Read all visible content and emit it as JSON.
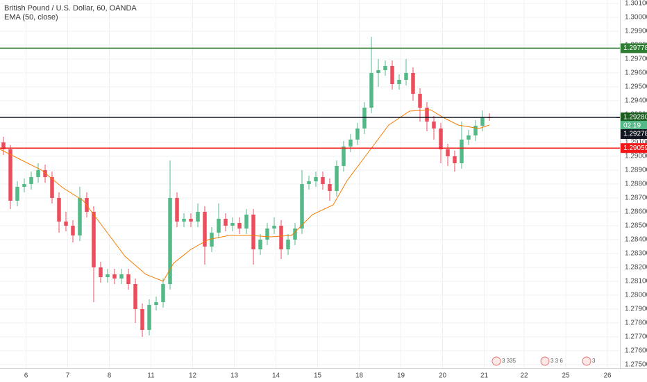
{
  "chart_data": {
    "type": "candlestick",
    "title": "British Pound / U.S. Dollar, 60, OANDA",
    "up_color": "#53b987",
    "down_color": "#eb4d5c",
    "grid": true,
    "xlim": [
      0,
      357.2
    ],
    "ylim": [
      1.27475,
      1.30125
    ],
    "xticks": [
      {
        "value": 15,
        "label": "6"
      },
      {
        "value": 39,
        "label": "7"
      },
      {
        "value": 63,
        "label": "8"
      },
      {
        "value": 87,
        "label": "11"
      },
      {
        "value": 111,
        "label": "12"
      },
      {
        "value": 135,
        "label": "13"
      },
      {
        "value": 159,
        "label": "14"
      },
      {
        "value": 183,
        "label": "15"
      },
      {
        "value": 207,
        "label": "18"
      },
      {
        "value": 231,
        "label": "19"
      },
      {
        "value": 255,
        "label": "20"
      },
      {
        "value": 279,
        "label": "21"
      },
      {
        "value": 302,
        "label": "22"
      },
      {
        "value": 326,
        "label": "25"
      },
      {
        "value": 350,
        "label": "26"
      }
    ],
    "yticks": [
      {
        "value": 1.301,
        "label": "1.30100"
      },
      {
        "value": 1.3,
        "label": "1.30000"
      },
      {
        "value": 1.299,
        "label": "1.29900"
      },
      {
        "value": 1.298,
        "label": "1.29800"
      },
      {
        "value": 1.297,
        "label": "1.29700"
      },
      {
        "value": 1.296,
        "label": "1.29600"
      },
      {
        "value": 1.295,
        "label": "1.29500"
      },
      {
        "value": 1.294,
        "label": "1.29400"
      },
      {
        "value": 1.293,
        "label": "1.29300"
      },
      {
        "value": 1.292,
        "label": "1.29200"
      },
      {
        "value": 1.291,
        "label": "1.29100"
      },
      {
        "value": 1.29,
        "label": "1.29000"
      },
      {
        "value": 1.289,
        "label": "1.28900"
      },
      {
        "value": 1.288,
        "label": "1.28800"
      },
      {
        "value": 1.287,
        "label": "1.28700"
      },
      {
        "value": 1.286,
        "label": "1.28600"
      },
      {
        "value": 1.285,
        "label": "1.28500"
      },
      {
        "value": 1.284,
        "label": "1.28400"
      },
      {
        "value": 1.283,
        "label": "1.28300"
      },
      {
        "value": 1.282,
        "label": "1.28200"
      },
      {
        "value": 1.281,
        "label": "1.28100"
      },
      {
        "value": 1.28,
        "label": "1.28000"
      },
      {
        "value": 1.279,
        "label": "1.27900"
      },
      {
        "value": 1.278,
        "label": "1.27800"
      },
      {
        "value": 1.277,
        "label": "1.27700"
      },
      {
        "value": 1.276,
        "label": "1.27600"
      },
      {
        "value": 1.275,
        "label": "1.27500"
      }
    ],
    "x": [
      2,
      6,
      10,
      14,
      18,
      22,
      26,
      30,
      34,
      38,
      42,
      46,
      50,
      54,
      58,
      62,
      66,
      70,
      74,
      78,
      82,
      86,
      90,
      94,
      98,
      102,
      106,
      110,
      114,
      118,
      122,
      126,
      130,
      134,
      138,
      142,
      146,
      150,
      154,
      158,
      162,
      166,
      170,
      174,
      178,
      182,
      186,
      190,
      194,
      198,
      202,
      206,
      210,
      214,
      218,
      222,
      226,
      230,
      234,
      238,
      242,
      246,
      250,
      254,
      258,
      262,
      266,
      270,
      274,
      278,
      282
    ],
    "ohlc": [
      [
        1.291,
        1.2914,
        1.2901,
        1.2905
      ],
      [
        1.2905,
        1.2908,
        1.2862,
        1.2868
      ],
      [
        1.2868,
        1.2882,
        1.2864,
        1.2878
      ],
      [
        1.2878,
        1.2884,
        1.2874,
        1.288
      ],
      [
        1.288,
        1.2889,
        1.2876,
        1.2885
      ],
      [
        1.2885,
        1.2895,
        1.2881,
        1.289
      ],
      [
        1.289,
        1.2894,
        1.2881,
        1.2885
      ],
      [
        1.2885,
        1.2889,
        1.2866,
        1.287
      ],
      [
        1.287,
        1.2874,
        1.2845,
        1.2853
      ],
      [
        1.2853,
        1.286,
        1.2846,
        1.285
      ],
      [
        1.285,
        1.2854,
        1.2838,
        1.2843
      ],
      [
        1.2843,
        1.2878,
        1.2839,
        1.287
      ],
      [
        1.287,
        1.2874,
        1.2856,
        1.286
      ],
      [
        1.286,
        1.2864,
        1.2795,
        1.282
      ],
      [
        1.282,
        1.2824,
        1.2809,
        1.2813
      ],
      [
        1.2813,
        1.2819,
        1.2809,
        1.2815
      ],
      [
        1.2815,
        1.2819,
        1.2808,
        1.2812
      ],
      [
        1.2812,
        1.2819,
        1.2808,
        1.2815
      ],
      [
        1.2815,
        1.2819,
        1.2804,
        1.2808
      ],
      [
        1.2808,
        1.2812,
        1.278,
        1.279
      ],
      [
        1.279,
        1.2794,
        1.277,
        1.2775
      ],
      [
        1.2775,
        1.2797,
        1.2771,
        1.2793
      ],
      [
        1.2793,
        1.2799,
        1.2789,
        1.2795
      ],
      [
        1.2795,
        1.2812,
        1.2791,
        1.2808
      ],
      [
        1.2808,
        1.2897,
        1.2804,
        1.287
      ],
      [
        1.287,
        1.2874,
        1.2849,
        1.2853
      ],
      [
        1.2853,
        1.2859,
        1.2849,
        1.2855
      ],
      [
        1.2855,
        1.2859,
        1.2849,
        1.2853
      ],
      [
        1.2853,
        1.2866,
        1.2849,
        1.286
      ],
      [
        1.286,
        1.2864,
        1.2822,
        1.2835
      ],
      [
        1.2835,
        1.2849,
        1.2831,
        1.2845
      ],
      [
        1.2845,
        1.2866,
        1.2841,
        1.2855
      ],
      [
        1.2855,
        1.2859,
        1.2846,
        1.285
      ],
      [
        1.285,
        1.2856,
        1.2846,
        1.2852
      ],
      [
        1.2852,
        1.2856,
        1.2844,
        1.2848
      ],
      [
        1.2848,
        1.2862,
        1.2844,
        1.2858
      ],
      [
        1.2858,
        1.2862,
        1.2822,
        1.2833
      ],
      [
        1.2833,
        1.2844,
        1.2829,
        1.284
      ],
      [
        1.284,
        1.2852,
        1.2836,
        1.2848
      ],
      [
        1.2848,
        1.2856,
        1.2844,
        1.285
      ],
      [
        1.285,
        1.2854,
        1.2826,
        1.2833
      ],
      [
        1.2833,
        1.2844,
        1.2829,
        1.284
      ],
      [
        1.284,
        1.2852,
        1.2836,
        1.2848
      ],
      [
        1.2848,
        1.289,
        1.2844,
        1.288
      ],
      [
        1.288,
        1.2886,
        1.2876,
        1.2882
      ],
      [
        1.2882,
        1.2889,
        1.2878,
        1.2885
      ],
      [
        1.2885,
        1.2889,
        1.2876,
        1.288
      ],
      [
        1.288,
        1.2884,
        1.2868,
        1.2875
      ],
      [
        1.2875,
        1.2897,
        1.2871,
        1.2893
      ],
      [
        1.2893,
        1.2911,
        1.2889,
        1.2907
      ],
      [
        1.2907,
        1.2916,
        1.2903,
        1.2912
      ],
      [
        1.2912,
        1.2924,
        1.2908,
        1.292
      ],
      [
        1.292,
        1.2939,
        1.2916,
        1.2935
      ],
      [
        1.2935,
        1.2986,
        1.2931,
        1.296
      ],
      [
        1.296,
        1.297,
        1.295,
        1.2962
      ],
      [
        1.2962,
        1.2969,
        1.2958,
        1.2965
      ],
      [
        1.2965,
        1.2969,
        1.2948,
        1.2952
      ],
      [
        1.2952,
        1.2959,
        1.2948,
        1.2955
      ],
      [
        1.2955,
        1.297,
        1.2951,
        1.296
      ],
      [
        1.296,
        1.2964,
        1.294,
        1.2945
      ],
      [
        1.2945,
        1.2949,
        1.2925,
        1.2935
      ],
      [
        1.2935,
        1.2939,
        1.2918,
        1.2925
      ],
      [
        1.2925,
        1.2929,
        1.2912,
        1.292
      ],
      [
        1.292,
        1.2924,
        1.2895,
        1.2905
      ],
      [
        1.2905,
        1.2909,
        1.2893,
        1.29
      ],
      [
        1.29,
        1.2904,
        1.2889,
        1.2895
      ],
      [
        1.2895,
        1.2925,
        1.2891,
        1.2912
      ],
      [
        1.2912,
        1.2919,
        1.2908,
        1.2915
      ],
      [
        1.2915,
        1.2926,
        1.2911,
        1.2922
      ],
      [
        1.2922,
        1.2933,
        1.2918,
        1.2928
      ],
      [
        1.2928,
        1.2931,
        1.29255,
        1.29278
      ]
    ],
    "ema": {
      "name": "EMA (50, close)",
      "color": "#f57c00",
      "x": [
        0,
        12,
        24,
        36,
        48,
        60,
        72,
        84,
        94,
        100,
        110,
        120,
        132,
        144,
        156,
        168,
        180,
        192,
        200,
        212,
        224,
        236,
        248,
        256,
        264,
        276,
        282
      ],
      "values": [
        1.2905,
        1.28975,
        1.289,
        1.28775,
        1.2868,
        1.2848,
        1.2828,
        1.2815,
        1.281,
        1.2823,
        1.2833,
        1.284,
        1.2843,
        1.2843,
        1.2842,
        1.2843,
        1.2858,
        1.2865,
        1.28825,
        1.29025,
        1.29225,
        1.29325,
        1.29335,
        1.29275,
        1.29225,
        1.292,
        1.29225
      ]
    },
    "hlines": [
      {
        "value": 1.29778,
        "label": "1.29778",
        "color": "#2e7d32"
      },
      {
        "value": 1.2928,
        "label": "1.29280",
        "color": "#1b5e20"
      },
      {
        "value": 1.29059,
        "label": "1.29059",
        "color": "#f21818"
      }
    ],
    "countdown": "02:19",
    "last_price": {
      "value": 1.29278,
      "label": "1.29278",
      "color": "#131722"
    },
    "events": [
      {
        "x": 286,
        "label": "3 335"
      },
      {
        "x": 314,
        "label": "3 3 6"
      },
      {
        "x": 338,
        "label": "3"
      }
    ]
  }
}
